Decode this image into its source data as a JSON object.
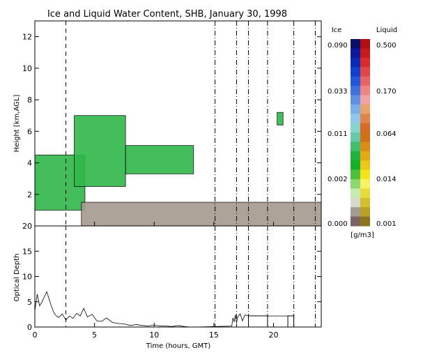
{
  "title": "Ice and Liquid Water Content, SHB, January 30, 1998",
  "colorbar": {
    "ice_label": "Ice",
    "liquid_label": "Liquid",
    "units": "[g/m3]",
    "ice_ticks": [
      "0.090",
      "0.033",
      "0.011",
      "0.002",
      "0.000"
    ],
    "liquid_ticks": [
      "0.500",
      "0.170",
      "0.064",
      "0.014",
      "0.001"
    ],
    "ice_colors": [
      "#0a0f6e",
      "#0b1a9a",
      "#0c2ab8",
      "#1040cc",
      "#2258d8",
      "#3f70dc",
      "#5f8fe2",
      "#7eaeea",
      "#8fc8ec",
      "#86d4cf",
      "#66c9a8",
      "#3fbf6c",
      "#20b23e",
      "#16b02a",
      "#4cc23c",
      "#8ed66e",
      "#c6eab4",
      "#d8d8cc",
      "#a49c92",
      "#7a6464"
    ],
    "liquid_colors": [
      "#b40f10",
      "#c8191b",
      "#da2a2a",
      "#e24646",
      "#e86464",
      "#ee8484",
      "#f2a2a0",
      "#e8a46c",
      "#e0864a",
      "#d86a26",
      "#d2701a",
      "#dc8c16",
      "#e6a814",
      "#eec818",
      "#f4e41c",
      "#f8f264",
      "#e8dc3c",
      "#d2c030",
      "#b8a026",
      "#8a7420"
    ]
  },
  "chart_data": [
    {
      "type": "heatmap",
      "title": "Ice and Liquid Water Content, SHB, January 30, 1998",
      "ylabel": "Height [km,AGL]",
      "xlim": [
        0,
        24
      ],
      "ylim": [
        0,
        13
      ],
      "yticks": [
        2,
        4,
        6,
        8,
        10,
        12
      ],
      "xticks": [
        0,
        5,
        10,
        15,
        20
      ],
      "dashed_vertical_lines_hours": [
        2.6
      ],
      "dashdot_vertical_lines_hours": [
        15.1,
        16.9,
        17.9,
        19.5,
        21.7,
        23.5
      ],
      "cloud_layers": [
        {
          "phase": "ice",
          "x_start": 0,
          "x_end": 4.2,
          "z_bottom": 1.0,
          "z_top": 4.5
        },
        {
          "phase": "ice",
          "x_start": 3.3,
          "x_end": 7.6,
          "z_bottom": 2.5,
          "z_top": 7.0
        },
        {
          "phase": "ice",
          "x_start": 7.6,
          "x_end": 13.3,
          "z_bottom": 3.3,
          "z_top": 5.1
        },
        {
          "phase": "ice",
          "x_start": 20.3,
          "x_end": 20.8,
          "z_bottom": 6.4,
          "z_top": 7.2
        },
        {
          "phase": "liquid",
          "x_start": 3.9,
          "x_end": 24,
          "z_bottom": 0.0,
          "z_top": 1.5
        }
      ]
    },
    {
      "type": "line",
      "ylabel": "Optical Depth",
      "xlabel": "Time (hours, GMT)",
      "xlim": [
        0,
        24
      ],
      "ylim": [
        0,
        20
      ],
      "yticks": [
        0,
        5,
        10,
        15,
        20
      ],
      "xticks": [
        0,
        5,
        10,
        15,
        20
      ],
      "x": [
        0,
        0.2,
        0.4,
        0.6,
        0.8,
        1.0,
        1.2,
        1.4,
        1.6,
        1.8,
        2.0,
        2.3,
        2.6,
        2.9,
        3.2,
        3.5,
        3.8,
        4.1,
        4.4,
        4.8,
        5.2,
        5.6,
        6.0,
        6.5,
        7.0,
        7.5,
        8.0,
        8.5,
        9.0,
        9.5,
        10.0,
        10.5,
        11.0,
        11.5,
        12.0,
        12.5,
        13.0,
        13.5,
        16.5,
        16.6,
        16.7,
        16.8,
        16.9,
        17.0,
        17.2,
        17.4,
        17.6,
        17.9,
        19.5,
        21.2,
        21.7
      ],
      "y": [
        3.2,
        6.5,
        4.2,
        5.0,
        6.0,
        7.0,
        5.5,
        4.0,
        2.8,
        2.2,
        1.9,
        2.6,
        1.4,
        2.2,
        1.7,
        2.7,
        2.2,
        3.7,
        2.0,
        2.5,
        1.2,
        1.1,
        1.8,
        0.9,
        0.7,
        0.6,
        0.3,
        0.5,
        0.3,
        0.2,
        0.4,
        0.2,
        0.2,
        0.1,
        0.3,
        0.1,
        0.0,
        0.0,
        0.2,
        1.8,
        1.0,
        2.4,
        0.8,
        2.0,
        2.6,
        1.2,
        2.4,
        2.2,
        2.2,
        2.2,
        2.2
      ],
      "dashed_vertical_lines_hours": [
        2.6
      ],
      "dashdot_vertical_lines_hours": [
        15.1,
        16.9,
        17.9,
        19.5,
        21.7,
        23.5
      ],
      "step_segments": [
        {
          "x_start": 17.9,
          "x_end": 19.5,
          "y": 2.2
        },
        {
          "x_start": 21.2,
          "x_end": 21.7,
          "y": 2.2
        }
      ]
    }
  ]
}
